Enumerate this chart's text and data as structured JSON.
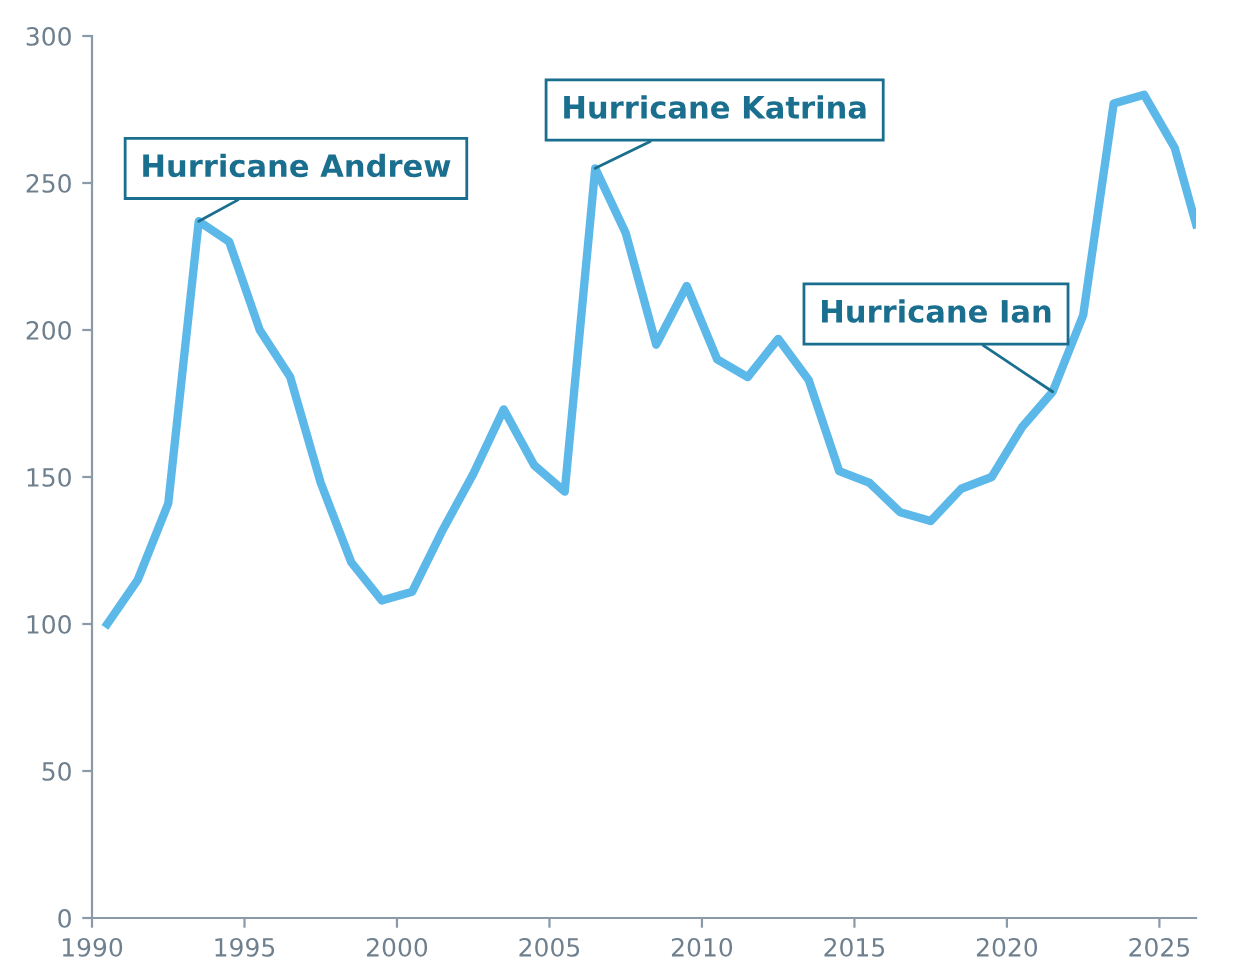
{
  "chart_data": {
    "type": "line",
    "x": [
      1990.5,
      1991.5,
      1992.5,
      1993.5,
      1994.5,
      1995.5,
      1996.5,
      1997.5,
      1998.5,
      1999.5,
      2000.5,
      2001.5,
      2002.5,
      2003.5,
      2004.5,
      2005.5,
      2006.5,
      2007.5,
      2008.5,
      2009.5,
      2010.5,
      2011.5,
      2012.5,
      2013.5,
      2014.5,
      2015.5,
      2016.5,
      2017.5,
      2018.5,
      2019.5,
      2020.5,
      2021.5,
      2022.5,
      2023.5,
      2024.5,
      2025.5,
      2026.2
    ],
    "series": [
      {
        "color": "#5bb8e8",
        "values": [
          100,
          115,
          141,
          237,
          230,
          200,
          184,
          148,
          121,
          108,
          111,
          132,
          151,
          173,
          154,
          145,
          255,
          233,
          195,
          215,
          190,
          184,
          197,
          183,
          152,
          148,
          138,
          135,
          146,
          150,
          167,
          179,
          205,
          277,
          280,
          262,
          236
        ]
      }
    ],
    "xlim": [
      1990,
      2026.2
    ],
    "xticks": [
      1990,
      1995,
      2000,
      2005,
      2010,
      2015,
      2020,
      2025
    ],
    "ylim": [
      0,
      300
    ],
    "yticks": [
      0,
      50,
      100,
      150,
      200,
      250,
      300
    ],
    "grid": false,
    "legend": false,
    "marker": "none",
    "line_style": "solid",
    "annotations": [
      {
        "text": "Hurricane Andrew",
        "x": 1993.5,
        "y": 237
      },
      {
        "text": "Hurricane Katrina",
        "x": 2006.5,
        "y": 255
      },
      {
        "text": "Hurricane Ian",
        "x": 2021.5,
        "y": 179
      }
    ]
  }
}
